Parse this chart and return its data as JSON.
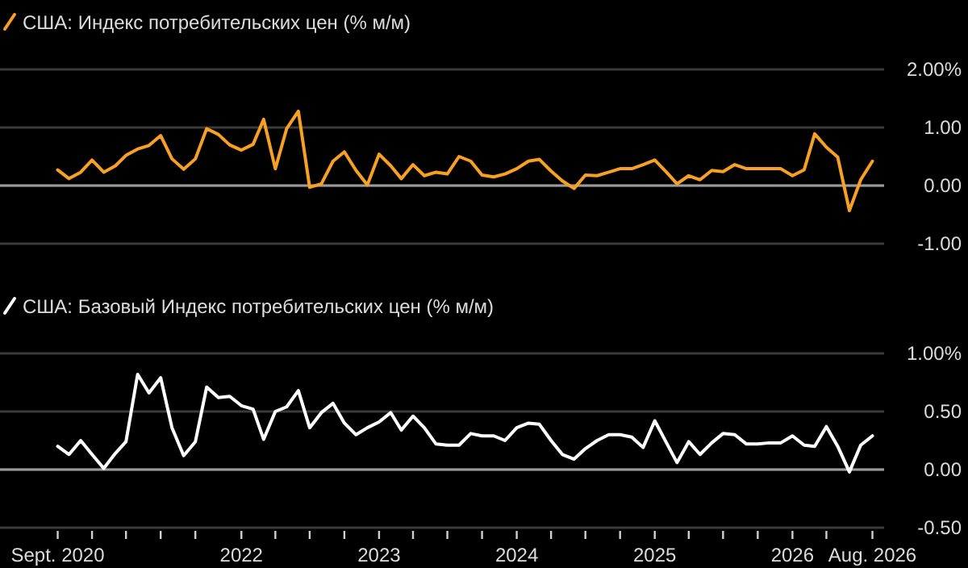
{
  "chart_data": [
    {
      "type": "line",
      "x": [
        "2020-09",
        "2020-10",
        "2020-11",
        "2020-12",
        "2021-01",
        "2021-02",
        "2021-03",
        "2021-04",
        "2021-05",
        "2021-06",
        "2021-07",
        "2021-08",
        "2021-09",
        "2021-10",
        "2021-11",
        "2021-12",
        "2022-01",
        "2022-02",
        "2022-03",
        "2022-04",
        "2022-05",
        "2022-06",
        "2022-07",
        "2022-08",
        "2022-09",
        "2022-10",
        "2022-11",
        "2022-12",
        "2023-01",
        "2023-02",
        "2023-03",
        "2023-04",
        "2023-05",
        "2023-06",
        "2023-07",
        "2023-08",
        "2023-09",
        "2023-10",
        "2023-11",
        "2023-12",
        "2024-01",
        "2024-02",
        "2024-03",
        "2024-04",
        "2024-05",
        "2024-06",
        "2024-07",
        "2024-08",
        "2024-09",
        "2024-10",
        "2024-11",
        "2024-12",
        "2025-01",
        "2025-02",
        "2025-03",
        "2025-04",
        "2025-05",
        "2025-06",
        "2025-07",
        "2025-08",
        "2025-09",
        "2025-10",
        "2025-11",
        "2025-12",
        "2026-01",
        "2026-02",
        "2026-03",
        "2026-04",
        "2026-05",
        "2026-06",
        "2026-07",
        "2026-08"
      ],
      "series": [
        {
          "name": "США: Индекс потребительских цен (% м/м)",
          "color": "#f7a024",
          "values": [
            0.27,
            0.12,
            0.23,
            0.44,
            0.23,
            0.34,
            0.52,
            0.63,
            0.69,
            0.86,
            0.46,
            0.28,
            0.46,
            0.98,
            0.88,
            0.7,
            0.61,
            0.71,
            1.14,
            0.29,
            0.98,
            1.28,
            -0.03,
            0.03,
            0.42,
            0.58,
            0.26,
            0.01,
            0.54,
            0.34,
            0.12,
            0.36,
            0.17,
            0.23,
            0.2,
            0.5,
            0.42,
            0.18,
            0.15,
            0.2,
            0.29,
            0.42,
            0.45,
            0.25,
            0.08,
            -0.05,
            0.18,
            0.17,
            0.23,
            0.29,
            0.29,
            0.36,
            0.44,
            0.23,
            0.03,
            0.17,
            0.1,
            0.26,
            0.24,
            0.36,
            0.29,
            0.29,
            0.29,
            0.29,
            0.17,
            0.27,
            0.89,
            0.66,
            0.49,
            -0.43,
            0.1,
            0.42
          ]
        }
      ],
      "xlim": [
        "2020-04",
        "2026-09"
      ],
      "ylim": [
        -1,
        2
      ],
      "yticks": [
        {
          "value": 2,
          "label": "2.00%"
        },
        {
          "value": 1,
          "label": "1.00"
        },
        {
          "value": 0,
          "label": "0.00"
        },
        {
          "value": -1,
          "label": "-1.00"
        }
      ],
      "ref_lines": [
        {
          "axis": "y",
          "value": 0,
          "color": "#9a9a9a"
        }
      ],
      "grid": "y",
      "legend": "top left",
      "tick_labels": "y"
    },
    {
      "type": "line",
      "x": [
        "2020-09",
        "2020-10",
        "2020-11",
        "2020-12",
        "2021-01",
        "2021-02",
        "2021-03",
        "2021-04",
        "2021-05",
        "2021-06",
        "2021-07",
        "2021-08",
        "2021-09",
        "2021-10",
        "2021-11",
        "2021-12",
        "2022-01",
        "2022-02",
        "2022-03",
        "2022-04",
        "2022-05",
        "2022-06",
        "2022-07",
        "2022-08",
        "2022-09",
        "2022-10",
        "2022-11",
        "2022-12",
        "2023-01",
        "2023-02",
        "2023-03",
        "2023-04",
        "2023-05",
        "2023-06",
        "2023-07",
        "2023-08",
        "2023-09",
        "2023-10",
        "2023-11",
        "2023-12",
        "2024-01",
        "2024-02",
        "2024-03",
        "2024-04",
        "2024-05",
        "2024-06",
        "2024-07",
        "2024-08",
        "2024-09",
        "2024-10",
        "2024-11",
        "2024-12",
        "2025-01",
        "2025-02",
        "2025-03",
        "2025-04",
        "2025-05",
        "2025-06",
        "2025-07",
        "2025-08",
        "2025-09",
        "2025-10",
        "2025-11",
        "2025-12",
        "2026-01",
        "2026-02",
        "2026-03",
        "2026-04",
        "2026-05",
        "2026-06",
        "2026-07",
        "2026-08"
      ],
      "series": [
        {
          "name": "США: Базовый Индекс потребительских цен (% м/м)",
          "color": "#ffffff",
          "values": [
            0.2,
            0.13,
            0.25,
            0.13,
            0.01,
            0.14,
            0.24,
            0.82,
            0.66,
            0.79,
            0.36,
            0.12,
            0.24,
            0.71,
            0.62,
            0.63,
            0.55,
            0.52,
            0.26,
            0.5,
            0.54,
            0.68,
            0.36,
            0.49,
            0.57,
            0.4,
            0.3,
            0.36,
            0.41,
            0.49,
            0.34,
            0.46,
            0.36,
            0.22,
            0.21,
            0.21,
            0.31,
            0.29,
            0.29,
            0.25,
            0.36,
            0.4,
            0.39,
            0.25,
            0.13,
            0.09,
            0.18,
            0.25,
            0.3,
            0.3,
            0.28,
            0.19,
            0.42,
            0.23,
            0.06,
            0.24,
            0.13,
            0.23,
            0.31,
            0.3,
            0.22,
            0.22,
            0.23,
            0.23,
            0.29,
            0.21,
            0.2,
            0.37,
            0.2,
            -0.02,
            0.21,
            0.29
          ]
        }
      ],
      "xlim": [
        "2020-04",
        "2026-09"
      ],
      "xticks": [
        {
          "value": "2020-09",
          "label": "Sept. 2020"
        },
        {
          "value": "2020-12",
          "label": null
        },
        {
          "value": "2021-03",
          "label": null
        },
        {
          "value": "2021-06",
          "label": null
        },
        {
          "value": "2021-09",
          "label": null
        },
        {
          "value": "2022-01",
          "label": "2022"
        },
        {
          "value": "2022-04",
          "label": null
        },
        {
          "value": "2022-07",
          "label": null
        },
        {
          "value": "2022-10",
          "label": null
        },
        {
          "value": "2023-01",
          "label": "2023"
        },
        {
          "value": "2023-04",
          "label": null
        },
        {
          "value": "2023-07",
          "label": null
        },
        {
          "value": "2023-10",
          "label": null
        },
        {
          "value": "2024-01",
          "label": "2024"
        },
        {
          "value": "2024-04",
          "label": null
        },
        {
          "value": "2024-07",
          "label": null
        },
        {
          "value": "2024-10",
          "label": null
        },
        {
          "value": "2025-01",
          "label": "2025"
        },
        {
          "value": "2025-04",
          "label": null
        },
        {
          "value": "2025-07",
          "label": null
        },
        {
          "value": "2025-10",
          "label": null
        },
        {
          "value": "2026-01",
          "label": "2026"
        },
        {
          "value": "2026-04",
          "label": null
        },
        {
          "value": "2026-08",
          "label": "Aug. 2026"
        }
      ],
      "ylim": [
        -0.5,
        1
      ],
      "yticks": [
        {
          "value": 1,
          "label": "1.00%"
        },
        {
          "value": 0.5,
          "label": "0.50"
        },
        {
          "value": 0,
          "label": "0.00"
        },
        {
          "value": -0.5,
          "label": "-0.50"
        }
      ],
      "ref_lines": [
        {
          "axis": "y",
          "value": 0,
          "color": "#9a9a9a"
        }
      ],
      "grid": "y",
      "legend": "top left"
    }
  ]
}
